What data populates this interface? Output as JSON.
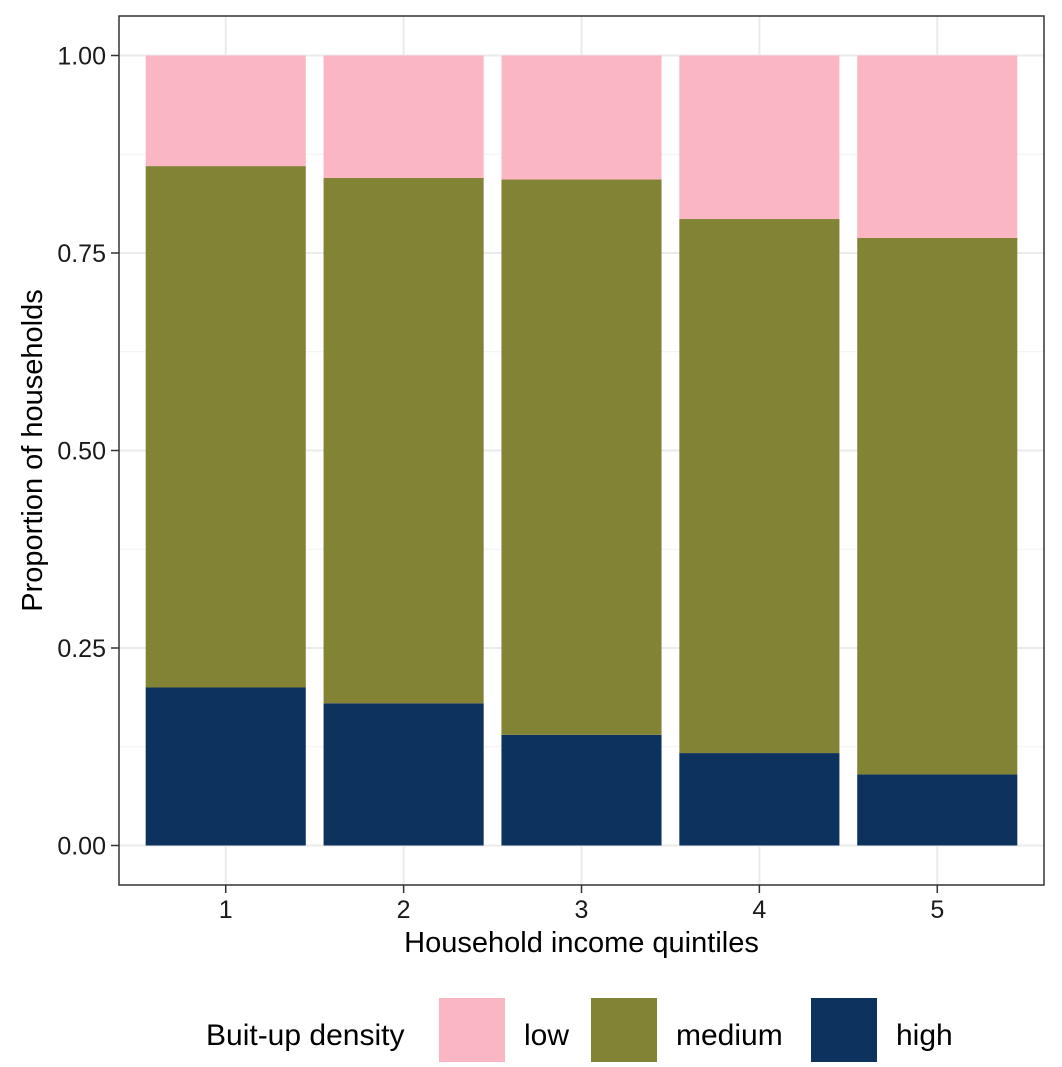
{
  "chart_data": {
    "type": "bar",
    "stacked": true,
    "title": "",
    "xlabel": "Household income quintiles",
    "ylabel": "Proportion of households",
    "categories": [
      "1",
      "2",
      "3",
      "4",
      "5"
    ],
    "ylim": [
      -0.05,
      1.05
    ],
    "yticks": [
      0,
      0.25,
      0.5,
      0.75,
      1
    ],
    "ytick_labels": [
      "0.00",
      "0.25",
      "0.50",
      "0.75",
      "1.00"
    ],
    "grid": true,
    "legend": {
      "title": "Buit-up density",
      "position": "bottom",
      "entries": [
        "low",
        "medium",
        "high"
      ]
    },
    "series": [
      {
        "name": "high",
        "color": "#0e325e",
        "values": [
          0.2,
          0.18,
          0.14,
          0.117,
          0.09
        ]
      },
      {
        "name": "medium",
        "color": "#838335",
        "values": [
          0.66,
          0.665,
          0.703,
          0.676,
          0.679
        ]
      },
      {
        "name": "low",
        "color": "#fbb6c3",
        "values": [
          0.14,
          0.155,
          0.157,
          0.207,
          0.231
        ]
      }
    ]
  }
}
